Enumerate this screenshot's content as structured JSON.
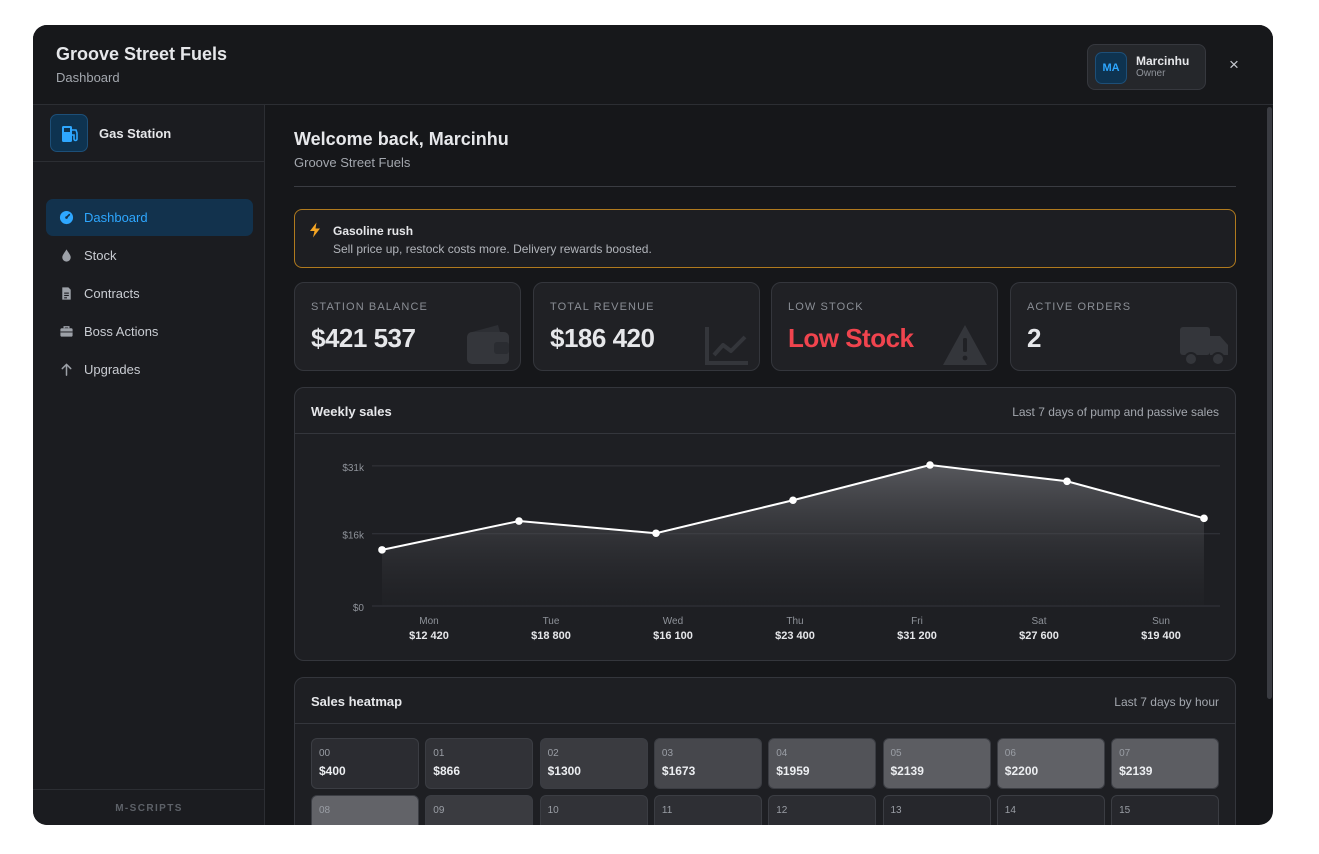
{
  "header": {
    "title": "Groove Street Fuels",
    "subtitle": "Dashboard"
  },
  "user": {
    "initials": "MA",
    "name": "Marcinhu",
    "role": "Owner",
    "close_label": "×"
  },
  "sidebar": {
    "brand": "Gas Station",
    "items": [
      {
        "label": "Dashboard",
        "icon": "gauge-icon",
        "active": true
      },
      {
        "label": "Stock",
        "icon": "droplet-icon",
        "active": false
      },
      {
        "label": "Contracts",
        "icon": "document-icon",
        "active": false
      },
      {
        "label": "Boss Actions",
        "icon": "briefcase-icon",
        "active": false
      },
      {
        "label": "Upgrades",
        "icon": "arrow-up-icon",
        "active": false
      }
    ],
    "footer": "M-SCRIPTS"
  },
  "main": {
    "welcome": "Welcome back, Marcinhu",
    "station": "Groove Street Fuels",
    "event": {
      "title": "Gasoline rush",
      "description": "Sell price up, restock costs more. Delivery rewards boosted."
    },
    "cards": [
      {
        "label": "STATION BALANCE",
        "value": "$421 537",
        "icon": "wallet-icon"
      },
      {
        "label": "TOTAL REVENUE",
        "value": "$186 420",
        "icon": "line-chart-icon"
      },
      {
        "label": "LOW STOCK",
        "value": "Low Stock",
        "icon": "warning-icon"
      },
      {
        "label": "ACTIVE ORDERS",
        "value": "2",
        "icon": "truck-icon"
      }
    ],
    "weekly": {
      "title": "Weekly sales",
      "note": "Last 7 days of pump and passive sales"
    },
    "heatmap": {
      "title": "Sales heatmap",
      "note": "Last 7 days by hour",
      "cells": [
        {
          "hour": "00",
          "value": "$400",
          "level": 0.06
        },
        {
          "hour": "01",
          "value": "$866",
          "level": 0.14
        },
        {
          "hour": "02",
          "value": "$1300",
          "level": 0.25
        },
        {
          "hour": "03",
          "value": "$1673",
          "level": 0.4
        },
        {
          "hour": "04",
          "value": "$1959",
          "level": 0.55
        },
        {
          "hour": "05",
          "value": "$2139",
          "level": 0.68
        },
        {
          "hour": "06",
          "value": "$2200",
          "level": 0.72
        },
        {
          "hour": "07",
          "value": "$2139",
          "level": 0.68
        },
        {
          "hour": "08",
          "value": "",
          "level": 0.75
        },
        {
          "hour": "09",
          "value": "",
          "level": 0.25
        },
        {
          "hour": "10",
          "value": "",
          "level": 0.14
        },
        {
          "hour": "11",
          "value": "",
          "level": 0.1
        },
        {
          "hour": "12",
          "value": "",
          "level": 0.08
        },
        {
          "hour": "13",
          "value": "",
          "level": 0.0
        },
        {
          "hour": "14",
          "value": "",
          "level": 0.0
        },
        {
          "hour": "15",
          "value": "",
          "level": 0.0
        }
      ]
    }
  },
  "colors": {
    "accent": "#2ea7ff",
    "alert": "#f0444e",
    "event_border": "#b07a1e",
    "event_icon": "#f5a524"
  },
  "chart_data": {
    "type": "area",
    "title": "Weekly sales",
    "categories": [
      "Mon",
      "Tue",
      "Wed",
      "Thu",
      "Fri",
      "Sat",
      "Sun"
    ],
    "category_labels": [
      "$12 420",
      "$18 800",
      "$16 100",
      "$23 400",
      "$31 200",
      "$27 600",
      "$19 400"
    ],
    "values": [
      12420,
      18800,
      16100,
      23400,
      31200,
      27600,
      19400
    ],
    "ylim": [
      0,
      31200
    ],
    "yticks": [
      0,
      16000,
      31000
    ],
    "ytick_labels": [
      "$0",
      "$16k",
      "$31k"
    ],
    "grid": true,
    "legend": "none"
  }
}
